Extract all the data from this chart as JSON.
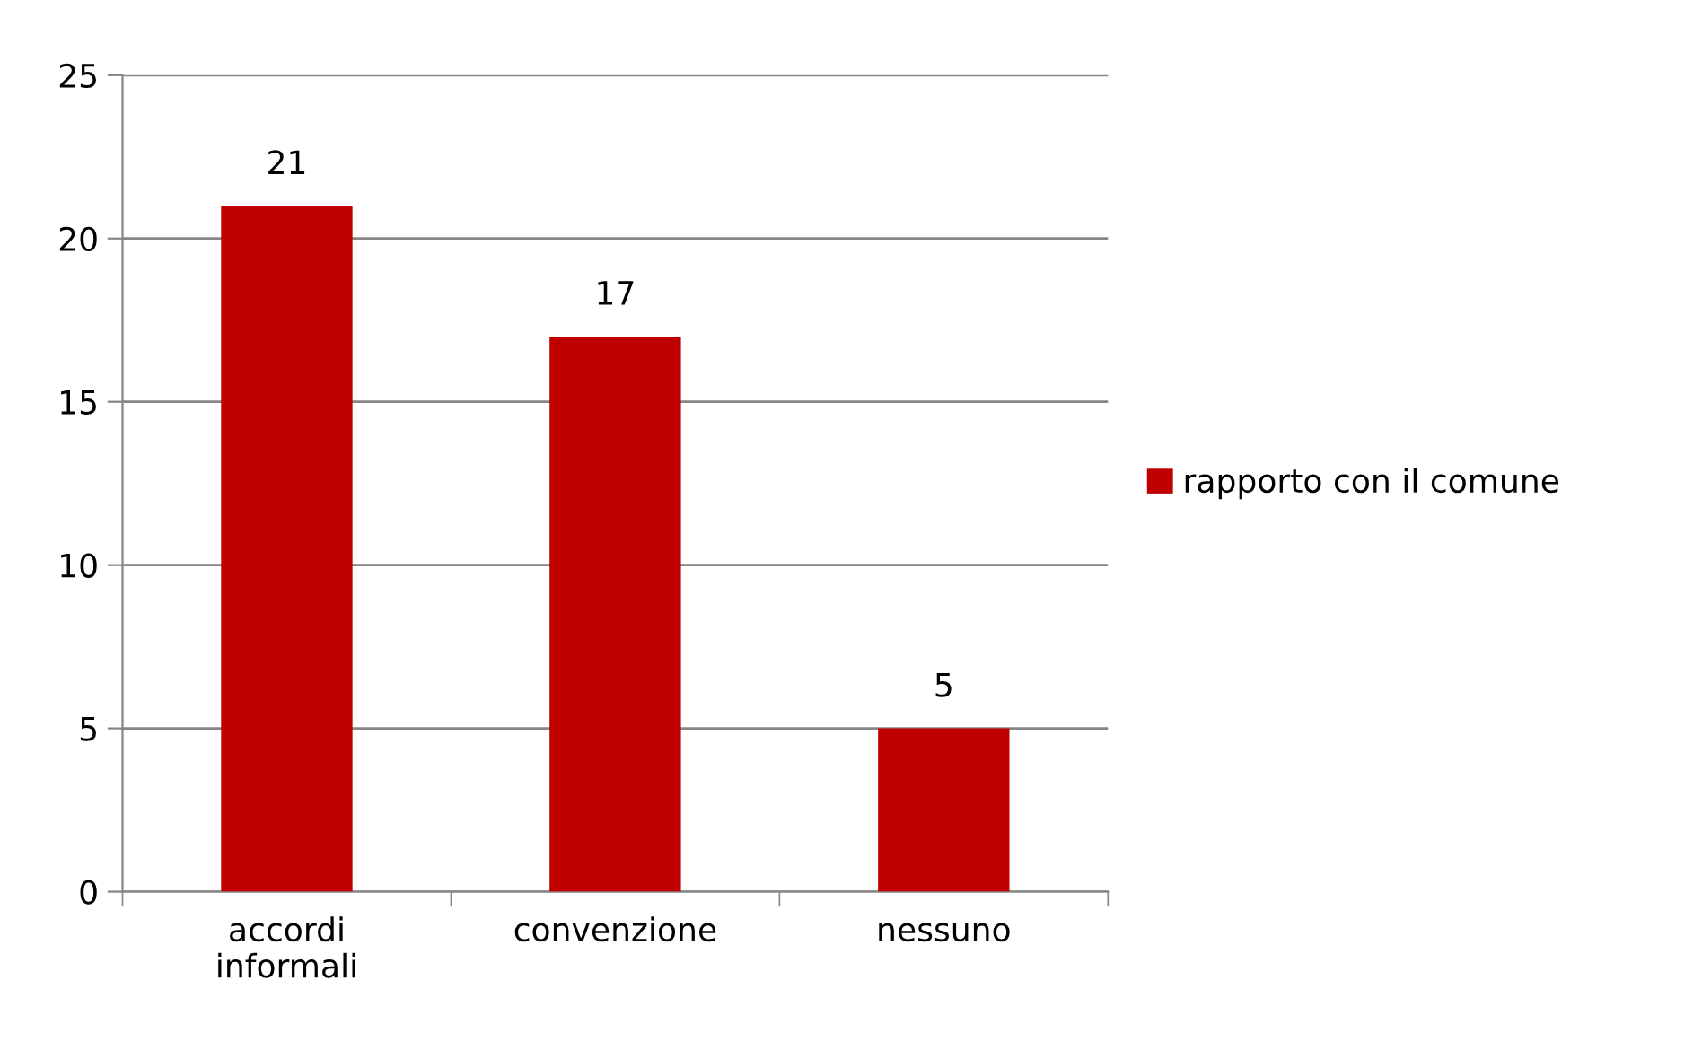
{
  "chart_data": {
    "type": "bar",
    "categories": [
      "accordi\ninformali",
      "convenzione",
      "nessuno"
    ],
    "series": [
      {
        "name": "rapporto con il comune",
        "color": "#c00000",
        "values": [
          21,
          17,
          5
        ]
      }
    ],
    "ylim": [
      0,
      25
    ],
    "yticks": [
      0,
      5,
      10,
      15,
      20,
      25
    ],
    "grid": "y",
    "legend": "right",
    "data_labels": true
  }
}
